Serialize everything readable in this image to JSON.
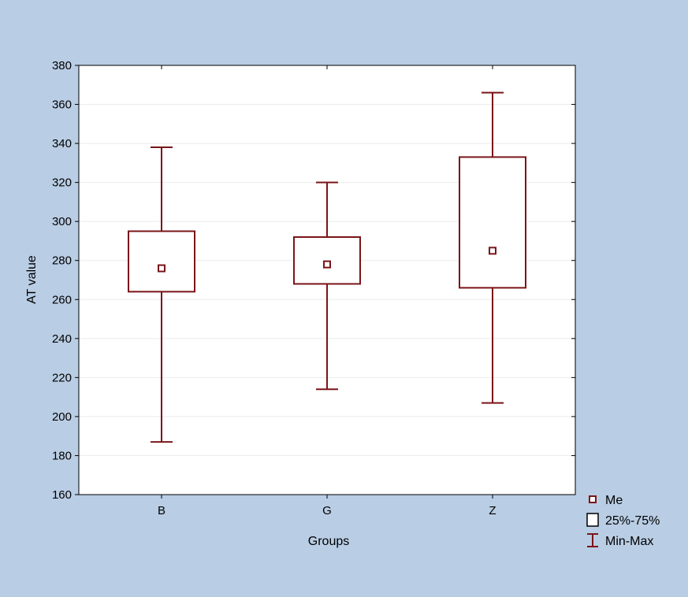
{
  "chart_data": {
    "type": "boxplot",
    "xlabel": "Groups",
    "ylabel": "AT value",
    "ylim": [
      160,
      380
    ],
    "yticks": [
      160,
      180,
      200,
      220,
      240,
      260,
      280,
      300,
      320,
      340,
      360,
      380
    ],
    "grid": true,
    "legend_position": "bottom-right outside",
    "categories": [
      "B",
      "G",
      "Z"
    ],
    "series": [
      {
        "category": "B",
        "median": 276,
        "q1": 264,
        "q3": 295,
        "min": 187,
        "max": 338
      },
      {
        "category": "G",
        "median": 278,
        "q1": 268,
        "q3": 292,
        "min": 214,
        "max": 320
      },
      {
        "category": "Z",
        "median": 285,
        "q1": 266,
        "q3": 333,
        "min": 207,
        "max": 366
      }
    ],
    "legend": [
      {
        "key": "median",
        "label": "Me"
      },
      {
        "key": "box",
        "label": "25%-75%"
      },
      {
        "key": "whisker",
        "label": "Min-Max"
      }
    ],
    "colors": {
      "mark": "#7a1518",
      "background": "#b9cde4",
      "plot": "#ffffff",
      "grid": "#ebebeb"
    }
  }
}
